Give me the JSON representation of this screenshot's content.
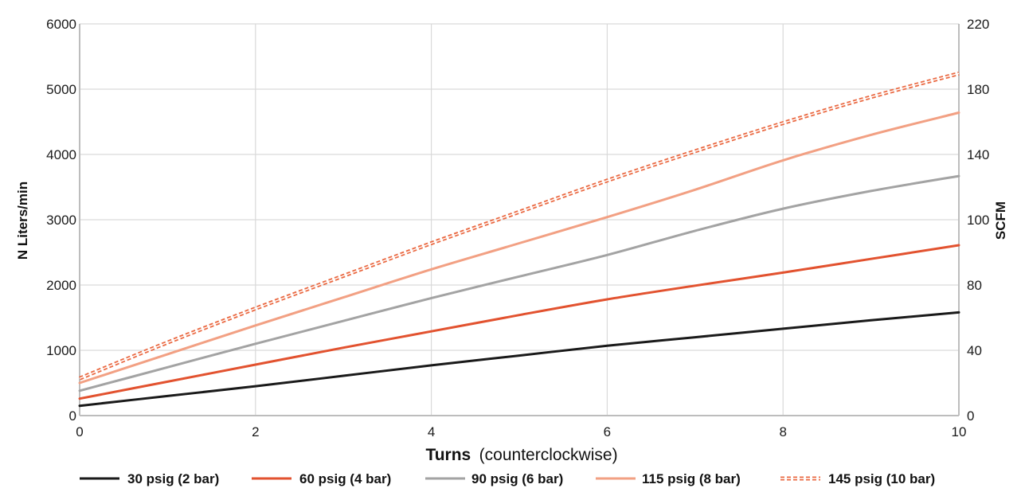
{
  "chart_data": {
    "type": "line",
    "title": "",
    "xlabel": "Turns",
    "xlabel_note": "(counterclockwise)",
    "ylabel": "N Liters/min",
    "y2label": "SCFM",
    "xlim": [
      0,
      10
    ],
    "ylim": [
      0,
      6000
    ],
    "y2lim": [
      0,
      220
    ],
    "x_ticks": [
      "0",
      "2",
      "4",
      "6",
      "8",
      "10"
    ],
    "y_ticks": [
      "0",
      "1000",
      "2000",
      "3000",
      "4000",
      "5000",
      "6000"
    ],
    "y2_ticks": [
      "0",
      "40",
      "80",
      "100",
      "140",
      "180",
      "220"
    ],
    "grid": true,
    "legend_position": "bottom",
    "x": [
      0,
      1,
      2,
      3,
      4,
      5,
      6,
      7,
      8,
      9,
      10
    ],
    "series": [
      {
        "name": "30 psig (2 bar)",
        "color": "#1a1a1a",
        "style": "solid",
        "values": [
          150,
          300,
          450,
          610,
          770,
          920,
          1070,
          1200,
          1330,
          1460,
          1580
        ]
      },
      {
        "name": "60 psig (4 bar)",
        "color": "#e2522f",
        "style": "solid",
        "values": [
          260,
          520,
          780,
          1040,
          1290,
          1540,
          1780,
          1990,
          2190,
          2400,
          2610
        ]
      },
      {
        "name": "90 psig (6 bar)",
        "color": "#a3a3a3",
        "style": "solid",
        "values": [
          380,
          740,
          1100,
          1450,
          1800,
          2130,
          2460,
          2830,
          3170,
          3440,
          3670
        ]
      },
      {
        "name": "115 psig (8 bar)",
        "color": "#f2a083",
        "style": "solid",
        "values": [
          500,
          940,
          1380,
          1810,
          2240,
          2640,
          3040,
          3460,
          3910,
          4300,
          4640
        ]
      },
      {
        "name": "145 psig (10 bar)",
        "color": "#ea6a43",
        "style": "dashed-double",
        "values": [
          570,
          1120,
          1640,
          2140,
          2640,
          3120,
          3600,
          4050,
          4480,
          4880,
          5240
        ]
      }
    ]
  }
}
